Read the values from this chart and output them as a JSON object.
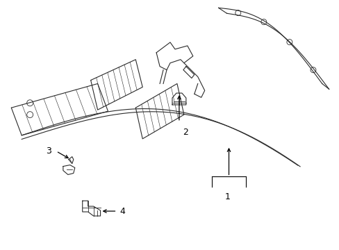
{
  "bg_color": "#ffffff",
  "line_color": "#2a2a2a",
  "label_color": "#000000",
  "fig_width": 4.89,
  "fig_height": 3.6,
  "dpi": 100
}
